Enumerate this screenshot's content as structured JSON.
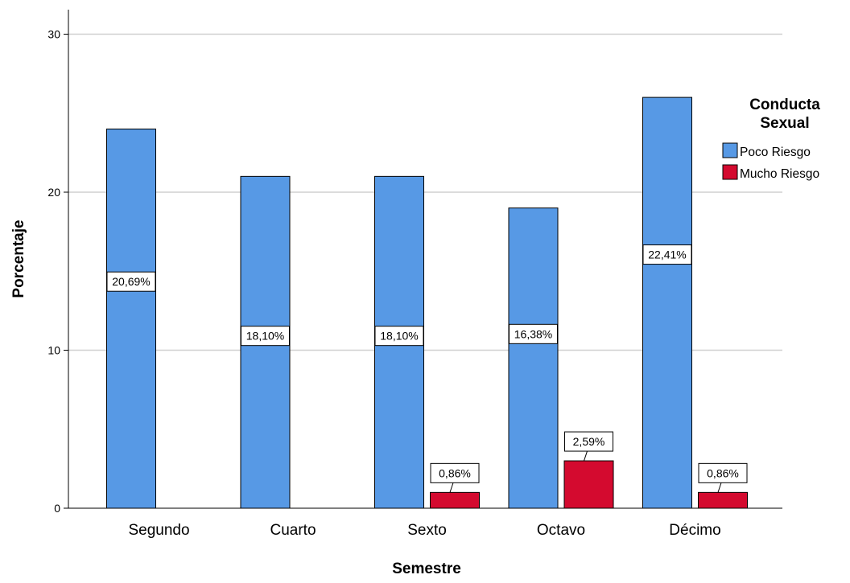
{
  "chart_data": {
    "type": "bar",
    "title": "",
    "xlabel": "Semestre",
    "ylabel": "Porcentaje",
    "categories": [
      "Segundo",
      "Cuarto",
      "Sexto",
      "Octavo",
      "Décimo"
    ],
    "ylim": [
      0,
      32
    ],
    "yticks": [
      0,
      10,
      20,
      30
    ],
    "ytick_labels": [
      "0",
      "10",
      "20",
      "30"
    ],
    "grid": true,
    "legend": {
      "title_line1": "Conducta",
      "title_line2": "Sexual",
      "placement": "right"
    },
    "series": [
      {
        "name": "Poco Riesgo",
        "color": "#5799e5",
        "values": [
          24,
          21,
          21,
          19,
          26
        ],
        "labels": [
          "20,69%",
          "18,10%",
          "18,10%",
          "16,38%",
          "22,41%"
        ]
      },
      {
        "name": "Mucho Riesgo",
        "color": "#d40a2f",
        "values": [
          0,
          0,
          1,
          3,
          1
        ],
        "labels": [
          "",
          "",
          "0,86%",
          "2,59%",
          "0,86%"
        ]
      }
    ]
  }
}
